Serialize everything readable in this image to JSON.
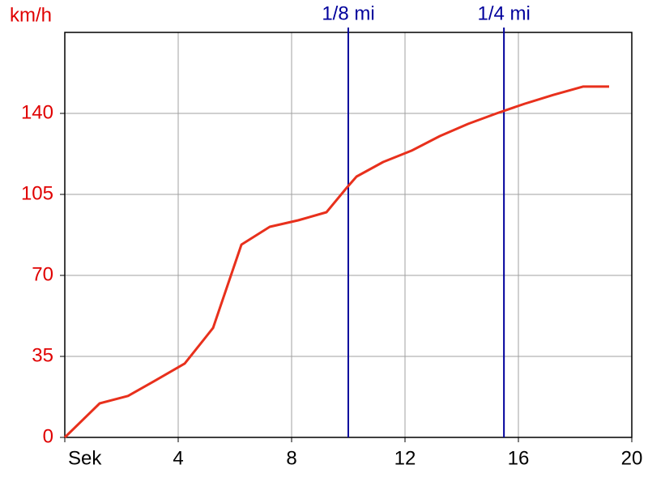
{
  "chart_data": {
    "type": "line",
    "y_label": "km/h",
    "x": [
      0,
      1.23,
      2.23,
      3.14,
      4.23,
      5.23,
      6.23,
      7.23,
      8.23,
      9.23,
      9.94,
      10.29,
      11.23,
      12.23,
      13.23,
      14.23,
      15.23,
      16.23,
      17.23,
      18.29,
      19.2
    ],
    "series": [
      {
        "color": "#e8301c",
        "values": [
          0,
          14.7,
          17.9,
          24.2,
          31.9,
          47.3,
          83.3,
          91,
          93.8,
          97.3,
          107.8,
          112.7,
          119,
          123.9,
          130.2,
          135.5,
          140,
          144.2,
          148,
          151.6,
          151.6
        ]
      }
    ],
    "xlim": [
      0,
      20
    ],
    "xticks": [
      {
        "value": 0,
        "label": "Sek"
      },
      4,
      8,
      12,
      16,
      20
    ],
    "ylim": [
      0,
      175
    ],
    "yticks": [
      0,
      35,
      70,
      105,
      140
    ],
    "grid": true,
    "markers": [
      {
        "x": 10,
        "label": "1/8 mi",
        "color": "#00009c"
      },
      {
        "x": 15.49,
        "label": "1/4 mi",
        "color": "#00009c"
      }
    ]
  }
}
